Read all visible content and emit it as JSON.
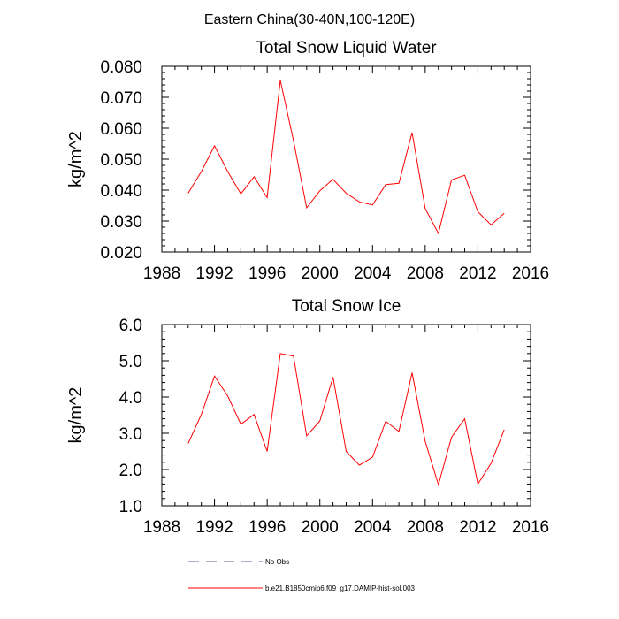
{
  "suptitle": "Eastern China(30-40N,100-120E)",
  "chart_data": [
    {
      "type": "line",
      "title": "Total Snow Liquid Water",
      "xlabel": "",
      "ylabel": "kg/m^2",
      "xlim": [
        1988,
        2016
      ],
      "ylim": [
        0.02,
        0.08
      ],
      "xticks": [
        "1988",
        "1992",
        "1996",
        "2000",
        "2004",
        "2008",
        "2012",
        "2016"
      ],
      "yticks": [
        "0.020",
        "0.030",
        "0.040",
        "0.050",
        "0.060",
        "0.070",
        "0.080"
      ],
      "grid": false,
      "series": [
        {
          "name": "b.e21.B1850cmip6.f09_g17.DAMIP-hist-sol.003",
          "color": "#ff0000",
          "x": [
            1990,
            1991,
            1992,
            1993,
            1994,
            1995,
            1996,
            1997,
            1998,
            1999,
            2000,
            2001,
            2002,
            2003,
            2004,
            2005,
            2006,
            2007,
            2008,
            2009,
            2010,
            2011,
            2012,
            2013,
            2014
          ],
          "values": [
            0.039,
            0.046,
            0.0543,
            0.046,
            0.0388,
            0.0443,
            0.0376,
            0.0755,
            0.056,
            0.0343,
            0.0398,
            0.0435,
            0.039,
            0.0362,
            0.0352,
            0.0418,
            0.0422,
            0.0586,
            0.034,
            0.026,
            0.0433,
            0.0448,
            0.033,
            0.0288,
            0.0325
          ]
        }
      ]
    },
    {
      "type": "line",
      "title": "Total Snow Ice",
      "xlabel": "",
      "ylabel": "kg/m^2",
      "xlim": [
        1988,
        2016
      ],
      "ylim": [
        1.0,
        6.0
      ],
      "xticks": [
        "1988",
        "1992",
        "1996",
        "2000",
        "2004",
        "2008",
        "2012",
        "2016"
      ],
      "yticks": [
        "1.0",
        "2.0",
        "3.0",
        "4.0",
        "5.0",
        "6.0"
      ],
      "grid": false,
      "series": [
        {
          "name": "b.e21.B1850cmip6.f09_g17.DAMIP-hist-sol.003",
          "color": "#ff0000",
          "x": [
            1990,
            1991,
            1992,
            1993,
            1994,
            1995,
            1996,
            1997,
            1998,
            1999,
            2000,
            2001,
            2002,
            2003,
            2004,
            2005,
            2006,
            2007,
            2008,
            2009,
            2010,
            2011,
            2012,
            2013,
            2014
          ],
          "values": [
            2.72,
            3.52,
            4.58,
            4.03,
            3.25,
            3.52,
            2.5,
            5.2,
            5.13,
            2.93,
            3.34,
            4.55,
            2.5,
            2.12,
            2.34,
            3.33,
            3.05,
            4.67,
            2.77,
            1.58,
            2.89,
            3.4,
            1.6,
            2.17,
            3.1
          ]
        }
      ]
    }
  ],
  "legend": {
    "placement": "bottom",
    "entries": [
      {
        "label": "No Obs",
        "color": "#5a5a9a",
        "style": "dashed"
      },
      {
        "label": "b.e21.B1850cmip6.f09_g17.DAMIP-hist-sol.003",
        "color": "#ff0000",
        "style": "solid"
      }
    ]
  }
}
